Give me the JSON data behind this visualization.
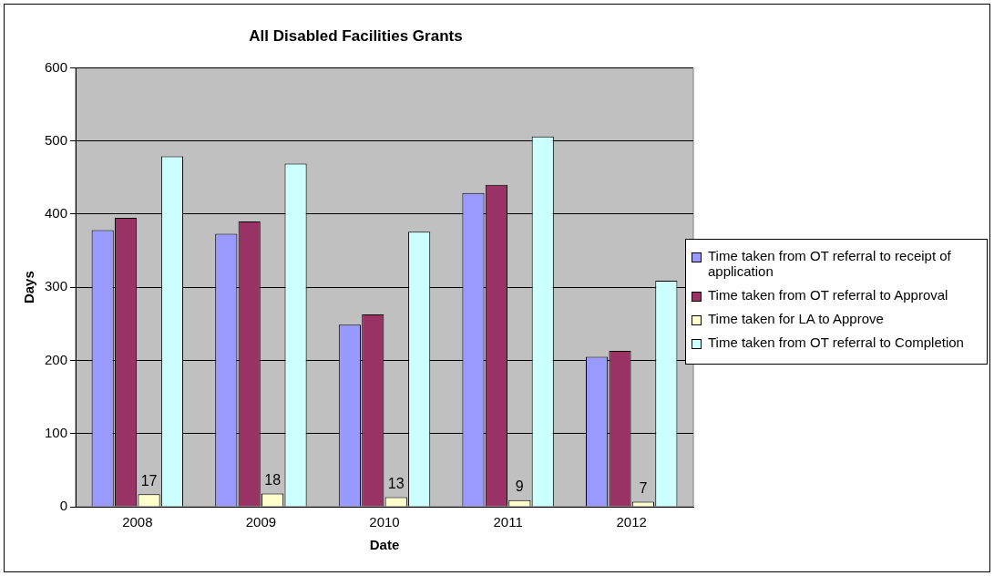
{
  "chart_data": {
    "type": "bar",
    "title": "All Disabled Facilities Grants",
    "xlabel": "Date",
    "ylabel": "Days",
    "categories": [
      "2008",
      "2009",
      "2010",
      "2011",
      "2012"
    ],
    "series": [
      {
        "name": "Time taken from OT referral to receipt of application",
        "color": "#9999ff",
        "values": [
          378,
          373,
          249,
          429,
          205
        ]
      },
      {
        "name": "Time taken from OT referral to Approval",
        "color": "#993366",
        "values": [
          395,
          390,
          263,
          440,
          213
        ]
      },
      {
        "name": "Time taken for LA to Approve",
        "color": "#ffffcc",
        "values": [
          17,
          18,
          13,
          9,
          7
        ],
        "value_labels": [
          "17",
          "18",
          "13",
          "9",
          "7"
        ]
      },
      {
        "name": "Time taken from OT referral to Completion",
        "color": "#ccffff",
        "values": [
          479,
          469,
          376,
          506,
          309
        ]
      }
    ],
    "ylim": [
      0,
      600
    ],
    "yticks": [
      0,
      100,
      200,
      300,
      400,
      500,
      600
    ],
    "grid": "y",
    "legend": "right"
  }
}
